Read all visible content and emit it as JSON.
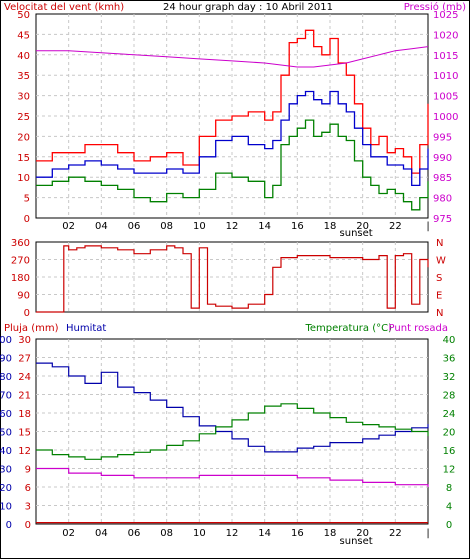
{
  "chart_data": [
    {
      "type": "line",
      "title": "24 hour graph day : 10 Abril 2011",
      "ylabel_left": "Velocitat del vent (kmh)",
      "ylabel_right": "Pressió (mb)",
      "xticks": [
        "02",
        "04",
        "06",
        "08",
        "10",
        "12",
        "14",
        "16",
        "18",
        "20",
        "22",
        "|"
      ],
      "x_annotation": "sunset",
      "yticks_left": [
        "0",
        "5",
        "10",
        "15",
        "20",
        "25",
        "30",
        "35",
        "40",
        "45",
        "50"
      ],
      "yticks_right": [
        "975",
        "980",
        "985",
        "990",
        "995",
        "1000",
        "1005",
        "1010",
        "1015",
        "1020",
        "1025"
      ],
      "ylim_left": [
        0,
        50
      ],
      "ylim_right": [
        975,
        1025
      ],
      "grid": true,
      "series": [
        {
          "name": "gust",
          "color": "#ff0000",
          "x": [
            0,
            1,
            2,
            3,
            4,
            5,
            6,
            7,
            8,
            9,
            10,
            11,
            12,
            13,
            14,
            14.5,
            15,
            15.5,
            16,
            16.5,
            17,
            17.5,
            18,
            18.5,
            19,
            19.5,
            20,
            20.5,
            21,
            21.5,
            22,
            22.5,
            23,
            23.5,
            24
          ],
          "values": [
            14,
            16,
            16,
            18,
            18,
            16,
            14,
            15,
            16,
            13,
            20,
            24,
            25,
            26,
            24,
            26,
            35,
            43,
            44,
            46,
            42,
            40,
            44,
            38,
            35,
            28,
            22,
            18,
            20,
            16,
            17,
            15,
            11,
            18,
            28
          ]
        },
        {
          "name": "average",
          "color": "#0000cc",
          "x": [
            0,
            1,
            2,
            3,
            4,
            5,
            6,
            7,
            8,
            9,
            10,
            11,
            12,
            13,
            14,
            14.5,
            15,
            15.5,
            16,
            16.5,
            17,
            17.5,
            18,
            18.5,
            19,
            19.5,
            20,
            20.5,
            21,
            21.5,
            22,
            22.5,
            23,
            23.5,
            24
          ],
          "values": [
            10,
            12,
            13,
            14,
            13,
            12,
            11,
            11,
            12,
            11,
            15,
            19,
            20,
            18,
            17,
            19,
            24,
            28,
            30,
            31,
            29,
            28,
            31,
            28,
            26,
            22,
            18,
            15,
            15,
            13,
            13,
            12,
            8,
            12,
            17
          ]
        },
        {
          "name": "low",
          "color": "#008000",
          "x": [
            0,
            1,
            2,
            3,
            4,
            5,
            6,
            7,
            8,
            9,
            10,
            11,
            12,
            13,
            14,
            14.5,
            15,
            15.5,
            16,
            16.5,
            17,
            17.5,
            18,
            18.5,
            19,
            19.5,
            20,
            20.5,
            21,
            21.5,
            22,
            22.5,
            23,
            23.5,
            24
          ],
          "values": [
            8,
            9,
            10,
            9,
            8,
            7,
            5,
            4,
            6,
            5,
            7,
            11,
            10,
            9,
            5,
            8,
            18,
            20,
            22,
            24,
            20,
            21,
            23,
            20,
            19,
            14,
            10,
            8,
            6,
            7,
            6,
            4,
            2,
            5,
            9
          ]
        },
        {
          "name": "pressure",
          "color": "#cc00cc",
          "axis": "right",
          "x": [
            0,
            2,
            4,
            6,
            8,
            10,
            12,
            14,
            15,
            16,
            17,
            18,
            19,
            20,
            21,
            22,
            23,
            24
          ],
          "values": [
            1016,
            1016,
            1015.5,
            1015,
            1014.5,
            1014,
            1013.5,
            1013,
            1012.5,
            1012,
            1012,
            1012.5,
            1013,
            1014,
            1015,
            1016,
            1016.5,
            1017
          ]
        }
      ]
    },
    {
      "type": "line",
      "ylabel_right": "N W S E N",
      "right_labels": [
        "N",
        "W",
        "S",
        "E",
        "N"
      ],
      "yticks_left": [
        "0",
        "90",
        "180",
        "270",
        "360"
      ],
      "ylim": [
        0,
        360
      ],
      "grid": true,
      "series": [
        {
          "name": "wind direction",
          "color": "#cc0000",
          "x": [
            0,
            1.5,
            1.7,
            2,
            2.5,
            3,
            4,
            5,
            6,
            7,
            8,
            8.5,
            9,
            9.5,
            10,
            10.5,
            11,
            12,
            13,
            14,
            14.5,
            15,
            16,
            18,
            20,
            21,
            21.5,
            22,
            22.5,
            23,
            23.5,
            24
          ],
          "values": [
            0,
            0,
            340,
            320,
            330,
            340,
            330,
            320,
            300,
            320,
            340,
            330,
            300,
            20,
            330,
            40,
            30,
            20,
            40,
            90,
            230,
            280,
            290,
            280,
            270,
            290,
            20,
            290,
            300,
            40,
            270,
            230
          ]
        }
      ]
    },
    {
      "type": "line",
      "ylabel_left": "Pluja (mm)",
      "ylabel_left2": "Humitat",
      "ylabel_right": "Temperatura (°C)",
      "ylabel_right2": "Punt rosada",
      "xticks": [
        "02",
        "04",
        "06",
        "08",
        "10",
        "12",
        "14",
        "16",
        "18",
        "20",
        "22",
        "|"
      ],
      "x_annotation": "sunset",
      "yticks_humidity": [
        "0",
        "10",
        "20",
        "30",
        "40",
        "50",
        "60",
        "70",
        "80",
        "90",
        "100"
      ],
      "yticks_rain": [
        "0",
        "3",
        "6",
        "9",
        "12",
        "15",
        "18",
        "21",
        "24",
        "27",
        "30"
      ],
      "yticks_temp": [
        "0",
        "4",
        "8",
        "12",
        "16",
        "20",
        "24",
        "28",
        "32",
        "36",
        "40"
      ],
      "ylim_temp": [
        0,
        40
      ],
      "ylim_humidity": [
        0,
        100
      ],
      "grid": true,
      "series": [
        {
          "name": "humidity",
          "color": "#0000aa",
          "axis": "humidity",
          "x": [
            0,
            1,
            2,
            3,
            4,
            5,
            6,
            7,
            8,
            9,
            10,
            11,
            12,
            13,
            14,
            15,
            16,
            17,
            18,
            19,
            20,
            21,
            22,
            23,
            24
          ],
          "values": [
            87,
            85,
            80,
            76,
            82,
            74,
            71,
            67,
            63,
            58,
            53,
            50,
            46,
            42,
            39,
            39,
            41,
            42,
            44,
            44,
            46,
            48,
            50,
            52,
            54
          ]
        },
        {
          "name": "temperature",
          "color": "#008000",
          "axis": "temp",
          "x": [
            0,
            1,
            2,
            3,
            4,
            5,
            6,
            7,
            8,
            9,
            10,
            11,
            12,
            13,
            14,
            15,
            16,
            17,
            18,
            19,
            20,
            21,
            22,
            23,
            24
          ],
          "values": [
            16,
            15,
            14.5,
            14,
            14.5,
            15,
            15.5,
            16,
            17,
            18,
            19.5,
            21,
            22.5,
            24,
            25.5,
            26,
            25,
            24,
            23,
            22,
            21.5,
            21,
            20.5,
            20,
            19
          ]
        },
        {
          "name": "dew point",
          "color": "#cc00cc",
          "axis": "temp",
          "x": [
            0,
            2,
            4,
            6,
            8,
            10,
            12,
            14,
            16,
            18,
            20,
            22,
            24
          ],
          "values": [
            12,
            11,
            10.5,
            10,
            10,
            10.5,
            10.5,
            10.5,
            10,
            9.5,
            9,
            8.5,
            8
          ]
        },
        {
          "name": "rain",
          "color": "#cc0000",
          "axis": "temp",
          "x": [
            0,
            24
          ],
          "values": [
            0.3,
            0.3
          ]
        }
      ]
    }
  ]
}
